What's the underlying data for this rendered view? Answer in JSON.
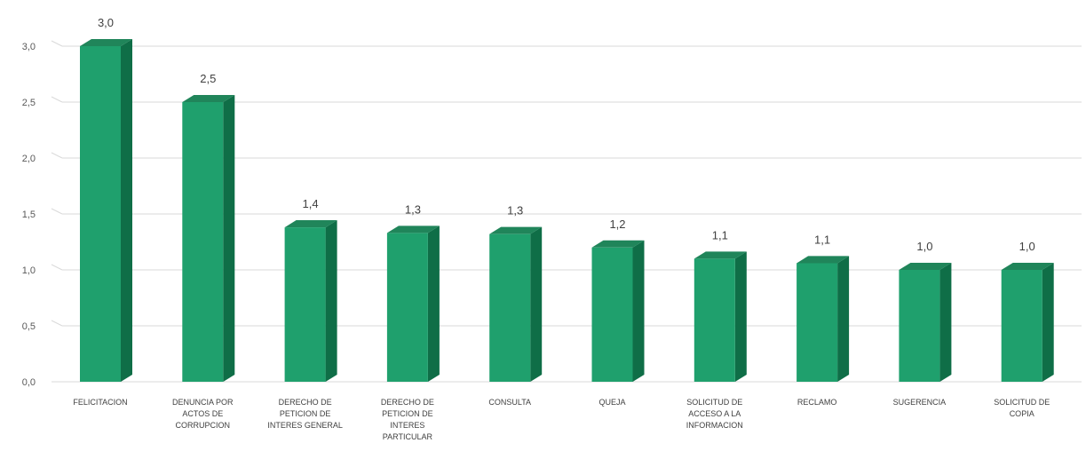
{
  "chart_data": {
    "type": "bar",
    "title": "",
    "xlabel": "",
    "ylabel": "",
    "ylim": [
      0,
      3
    ],
    "yticks": [
      "0,0",
      "0,5",
      "1,0",
      "1,5",
      "2,0",
      "2,5",
      "3,0"
    ],
    "grid": true,
    "legend": "none",
    "bar_3d": true,
    "colors": {
      "front": "#1fa06d",
      "side": "#0f6e47",
      "top": "#20855a",
      "grid": "#d9d9d9"
    },
    "categories": [
      [
        "FELICITACION"
      ],
      [
        "DENUNCIA POR",
        "ACTOS DE",
        "CORRUPCION"
      ],
      [
        "DERECHO DE",
        "PETICION DE",
        "INTERES GENERAL"
      ],
      [
        "DERECHO DE",
        "PETICION DE",
        "INTERES",
        "PARTICULAR"
      ],
      [
        "CONSULTA"
      ],
      [
        "QUEJA"
      ],
      [
        "SOLICITUD DE",
        "ACCESO A LA",
        "INFORMACION"
      ],
      [
        "RECLAMO"
      ],
      [
        "SUGERENCIA"
      ],
      [
        "SOLICITUD DE",
        "COPIA"
      ]
    ],
    "values": [
      3.0,
      2.5,
      1.38,
      1.33,
      1.32,
      1.2,
      1.1,
      1.06,
      1.0,
      1.0
    ],
    "data_labels": [
      "3,0",
      "2,5",
      "1,4",
      "1,3",
      "1,3",
      "1,2",
      "1,1",
      "1,1",
      "1,0",
      "1,0"
    ]
  }
}
